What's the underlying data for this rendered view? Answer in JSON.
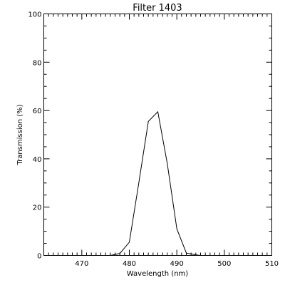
{
  "chart_data": {
    "type": "line",
    "title": "Filter 1403",
    "xlabel": "Wavelength (nm)",
    "ylabel": "Transmission (%)",
    "xlim": [
      462,
      510
    ],
    "ylim": [
      0,
      100
    ],
    "x_ticks": [
      470,
      480,
      490,
      500,
      510
    ],
    "x_tick_labels": [
      "470",
      "480",
      "490",
      "500",
      "510"
    ],
    "y_ticks": [
      0,
      20,
      40,
      60,
      80,
      100
    ],
    "y_tick_labels": [
      "0",
      "20",
      "40",
      "60",
      "80",
      "100"
    ],
    "x_minor_step": 1,
    "y_minor_step": 5,
    "grid": false,
    "series": [
      {
        "x": [
          475,
          476,
          478,
          480,
          482,
          484,
          486,
          488,
          490,
          492,
          494,
          495
        ],
        "y": [
          0,
          0,
          0.8,
          5.5,
          30,
          55.5,
          59.5,
          38,
          11,
          1,
          0.2,
          0
        ]
      }
    ]
  }
}
